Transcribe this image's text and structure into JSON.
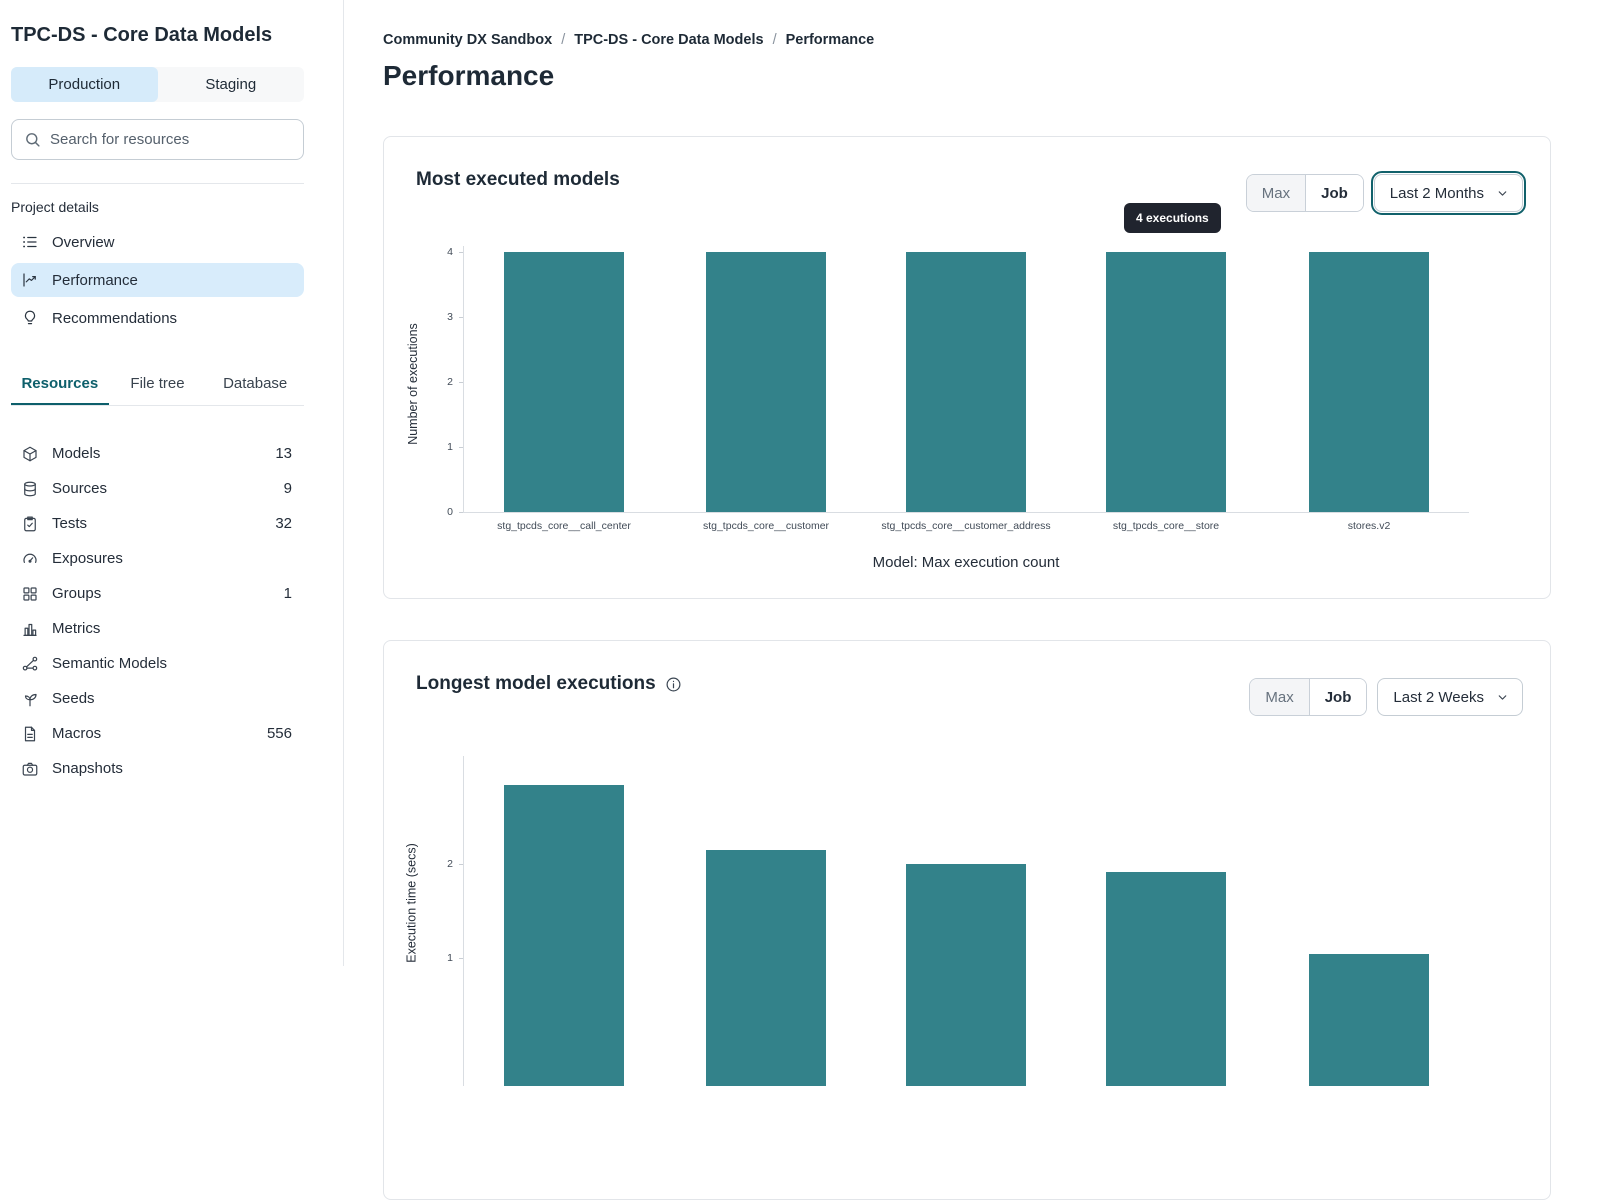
{
  "sidebar": {
    "project_title": "TPC-DS - Core Data Models",
    "env_tabs": [
      {
        "label": "Production",
        "active": true
      },
      {
        "label": "Staging",
        "active": false
      }
    ],
    "search_placeholder": "Search for resources",
    "project_details_label": "Project details",
    "nav": [
      {
        "label": "Overview",
        "icon": "list-icon",
        "active": false
      },
      {
        "label": "Performance",
        "icon": "chart-line-icon",
        "active": true
      },
      {
        "label": "Recommendations",
        "icon": "lightbulb-icon",
        "active": false
      }
    ],
    "resource_tabs": [
      {
        "label": "Resources",
        "active": true
      },
      {
        "label": "File tree",
        "active": false
      },
      {
        "label": "Database",
        "active": false
      }
    ],
    "resources": [
      {
        "label": "Models",
        "count": "13",
        "icon": "cube-icon"
      },
      {
        "label": "Sources",
        "count": "9",
        "icon": "database-icon"
      },
      {
        "label": "Tests",
        "count": "32",
        "icon": "clipboard-icon"
      },
      {
        "label": "Exposures",
        "count": "",
        "icon": "gauge-icon"
      },
      {
        "label": "Groups",
        "count": "1",
        "icon": "grid-icon"
      },
      {
        "label": "Metrics",
        "count": "",
        "icon": "bar-chart-icon"
      },
      {
        "label": "Semantic Models",
        "count": "",
        "icon": "graph-icon"
      },
      {
        "label": "Seeds",
        "count": "",
        "icon": "seedling-icon"
      },
      {
        "label": "Macros",
        "count": "556",
        "icon": "file-icon"
      },
      {
        "label": "Snapshots",
        "count": "",
        "icon": "camera-icon"
      }
    ]
  },
  "breadcrumb": {
    "items": [
      "Community DX Sandbox",
      "TPC-DS - Core Data Models",
      "Performance"
    ],
    "separator": "/"
  },
  "page_title": "Performance",
  "accent_colors": {
    "bar_teal": "#33828a",
    "active_blue": "#d6ebfa",
    "tab_teal": "#0d5f6b",
    "tooltip_dark": "#20242e"
  },
  "chart_data": [
    {
      "type": "bar",
      "title": "Most executed models",
      "categories": [
        "stg_tpcds_core__call_center",
        "stg_tpcds_core__customer",
        "stg_tpcds_core__customer_address",
        "stg_tpcds_core__store",
        "stores.v2"
      ],
      "values": [
        4,
        4,
        4,
        4,
        4
      ],
      "ylabel": "Number of executions",
      "xlabel": "Model: Max execution count",
      "yticks": [
        0,
        1,
        2,
        3,
        4
      ],
      "ylim": [
        0,
        4
      ],
      "grid": false,
      "bar_color": "#33828a",
      "controls": {
        "toggle": [
          "Max",
          "Job"
        ],
        "active_toggle": "Job",
        "dropdown": "Last 2 Months",
        "dropdown_focused": true
      },
      "tooltip": {
        "text": "4 executions",
        "bar_index": 3
      }
    },
    {
      "type": "bar",
      "title": "Longest model executions",
      "has_info_icon": true,
      "categories": [],
      "values": [
        2.84,
        2.15,
        2.0,
        1.91,
        1.04
      ],
      "ylabel": "Execution time (secs)",
      "xlabel": "",
      "yticks": [
        1,
        2
      ],
      "ylim": [
        0,
        3.15
      ],
      "grid": false,
      "bar_color": "#33828a",
      "controls": {
        "toggle": [
          "Max",
          "Job"
        ],
        "active_toggle": "Job",
        "dropdown": "Last 2 Weeks",
        "dropdown_focused": false
      }
    }
  ]
}
